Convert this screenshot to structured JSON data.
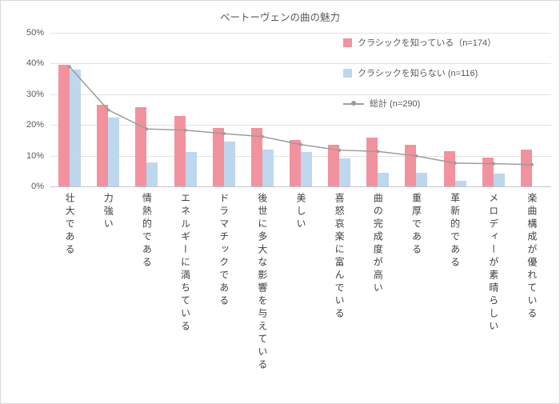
{
  "chart_data": {
    "type": "bar",
    "title": "ベートーヴェンの曲の魅力",
    "categories": [
      "壮大である",
      "力強い",
      "情熱的である",
      "エネルギーに満ちている",
      "ドラマチックである",
      "後世に多大な影響を与えている",
      "美しい",
      "喜怒哀楽に富んでいる",
      "曲の完成度が高い",
      "重厚である",
      "革新的である",
      "メロディーが素晴らしい",
      "楽曲構成が優れている"
    ],
    "series": [
      {
        "name": "クラシックを知っている（n=174）",
        "type": "bar",
        "color": "#f2929e",
        "values": [
          39.5,
          26.5,
          25.9,
          23.0,
          19.0,
          19.0,
          15.2,
          13.6,
          16.0,
          13.6,
          11.4,
          9.5,
          11.9
        ]
      },
      {
        "name": "クラシックを知らない (n=116)",
        "type": "bar",
        "color": "#bdd7ee",
        "values": [
          38.0,
          22.4,
          7.9,
          11.2,
          14.5,
          12.1,
          11.2,
          9.0,
          4.5,
          4.5,
          1.9,
          4.3,
          0.0
        ]
      },
      {
        "name": "総計 (n=290)",
        "type": "line",
        "color": "#9c9c9c",
        "values": [
          38.9,
          24.9,
          18.7,
          18.3,
          17.2,
          16.2,
          13.6,
          11.8,
          11.4,
          9.9,
          7.6,
          7.4,
          7.1
        ]
      }
    ],
    "ylim": [
      0,
      50
    ],
    "y_ticks": [
      "0%",
      "10%",
      "20%",
      "30%",
      "40%",
      "50%"
    ],
    "grid": true,
    "legend_position": "top-right"
  }
}
